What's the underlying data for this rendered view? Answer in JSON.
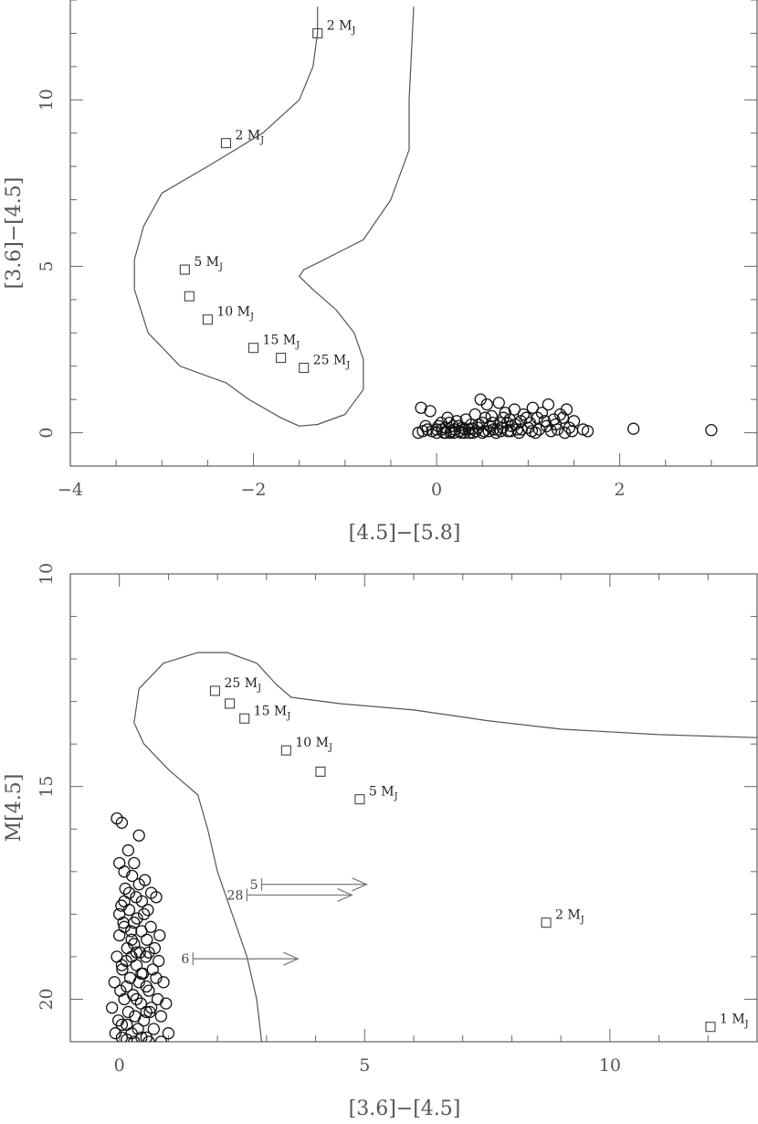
{
  "chart_data": [
    {
      "type": "scatter",
      "title": "",
      "xlabel": "[4.5]−[5.8]",
      "ylabel": "[3.6]−[4.5]",
      "xlim": [
        -4,
        3.5
      ],
      "ylim": [
        -1,
        13
      ],
      "xticks": [
        "−4",
        "−2",
        "0",
        "2"
      ],
      "xtick_values": [
        -4,
        -2,
        0,
        2
      ],
      "yticks": [
        "0",
        "5",
        "10"
      ],
      "ytick_values": [
        0,
        5,
        10
      ],
      "grid": false,
      "models": [
        {
          "label": "2",
          "unit": "M",
          "sub": "J",
          "x": -1.3,
          "y": 12.0
        },
        {
          "label": "2",
          "unit": "M",
          "sub": "J",
          "x": -2.3,
          "y": 8.7
        },
        {
          "label": "5",
          "unit": "M",
          "sub": "J",
          "x": -2.75,
          "y": 4.9
        },
        {
          "label": "",
          "unit": "",
          "sub": "",
          "x": -2.7,
          "y": 4.1
        },
        {
          "label": "10",
          "unit": "M",
          "sub": "J",
          "x": -2.5,
          "y": 3.4
        },
        {
          "label": "15",
          "unit": "M",
          "sub": "J",
          "x": -2.0,
          "y": 2.55
        },
        {
          "label": "",
          "unit": "",
          "sub": "",
          "x": -1.7,
          "y": 2.25
        },
        {
          "label": "25",
          "unit": "M",
          "sub": "J",
          "x": -1.45,
          "y": 1.95
        }
      ],
      "contour": [
        [
          -1.3,
          12.8
        ],
        [
          -1.3,
          12.0
        ],
        [
          -1.35,
          11.0
        ],
        [
          -1.5,
          10.0
        ],
        [
          -1.9,
          9.0
        ],
        [
          -2.5,
          8.0
        ],
        [
          -3.0,
          7.2
        ],
        [
          -3.2,
          6.2
        ],
        [
          -3.3,
          5.2
        ],
        [
          -3.3,
          4.3
        ],
        [
          -3.15,
          3.0
        ],
        [
          -2.8,
          2.0
        ],
        [
          -2.4,
          1.6
        ],
        [
          -2.3,
          1.5
        ],
        [
          -2.05,
          1.0
        ],
        [
          -1.7,
          0.45
        ],
        [
          -1.5,
          0.2
        ],
        [
          -1.3,
          0.25
        ],
        [
          -1.0,
          0.55
        ],
        [
          -0.8,
          1.3
        ],
        [
          -0.8,
          2.2
        ],
        [
          -0.9,
          3.0
        ],
        [
          -1.1,
          3.7
        ],
        [
          -1.35,
          4.3
        ],
        [
          -1.5,
          4.7
        ],
        [
          -1.45,
          4.9
        ],
        [
          -1.3,
          5.1
        ],
        [
          -0.8,
          5.8
        ],
        [
          -0.5,
          7.0
        ],
        [
          -0.3,
          8.5
        ],
        [
          -0.3,
          10.0
        ],
        [
          -0.25,
          12.8
        ]
      ],
      "points": [
        [
          -0.2,
          0.0
        ],
        [
          -0.17,
          0.75
        ],
        [
          -0.12,
          0.2
        ],
        [
          -0.05,
          0.05
        ],
        [
          -0.07,
          0.65
        ],
        [
          0.0,
          0.1
        ],
        [
          0.05,
          0.3
        ],
        [
          0.08,
          0.0
        ],
        [
          0.1,
          0.15
        ],
        [
          0.12,
          0.45
        ],
        [
          0.15,
          0.0
        ],
        [
          0.18,
          0.2
        ],
        [
          0.2,
          0.1
        ],
        [
          0.22,
          0.35
        ],
        [
          0.25,
          0.05
        ],
        [
          0.28,
          0.15
        ],
        [
          0.3,
          0.0
        ],
        [
          0.32,
          0.4
        ],
        [
          0.35,
          0.1
        ],
        [
          0.38,
          0.25
        ],
        [
          0.4,
          0.0
        ],
        [
          0.42,
          0.55
        ],
        [
          0.45,
          0.15
        ],
        [
          0.48,
          1.0
        ],
        [
          0.5,
          0.3
        ],
        [
          0.52,
          0.05
        ],
        [
          0.55,
          0.85
        ],
        [
          0.58,
          0.2
        ],
        [
          0.6,
          0.5
        ],
        [
          0.62,
          0.1
        ],
        [
          0.65,
          0.0
        ],
        [
          0.68,
          0.9
        ],
        [
          0.7,
          0.3
        ],
        [
          0.72,
          0.15
        ],
        [
          0.75,
          0.6
        ],
        [
          0.78,
          0.05
        ],
        [
          0.8,
          0.4
        ],
        [
          0.82,
          0.2
        ],
        [
          0.85,
          0.7
        ],
        [
          0.88,
          0.1
        ],
        [
          0.9,
          0.0
        ],
        [
          0.92,
          0.35
        ],
        [
          0.95,
          0.55
        ],
        [
          1.0,
          0.15
        ],
        [
          1.02,
          0.3
        ],
        [
          1.05,
          0.75
        ],
        [
          1.08,
          0.0
        ],
        [
          1.1,
          0.45
        ],
        [
          1.12,
          0.1
        ],
        [
          1.15,
          0.6
        ],
        [
          1.2,
          0.2
        ],
        [
          1.22,
          0.85
        ],
        [
          1.25,
          0.05
        ],
        [
          1.28,
          0.4
        ],
        [
          1.3,
          0.25
        ],
        [
          1.35,
          0.55
        ],
        [
          1.4,
          0.0
        ],
        [
          1.42,
          0.7
        ],
        [
          1.45,
          0.15
        ],
        [
          1.5,
          0.35
        ],
        [
          1.6,
          0.1
        ],
        [
          1.65,
          0.05
        ],
        [
          2.15,
          0.12
        ],
        [
          3.0,
          0.08
        ],
        [
          -0.15,
          0.05
        ],
        [
          -0.1,
          0.1
        ],
        [
          0.0,
          0.0
        ],
        [
          0.02,
          0.2
        ],
        [
          0.06,
          0.1
        ],
        [
          0.1,
          0.0
        ],
        [
          0.14,
          0.3
        ],
        [
          0.16,
          0.05
        ],
        [
          0.19,
          0.0
        ],
        [
          0.24,
          0.2
        ],
        [
          0.27,
          0.0
        ],
        [
          0.31,
          0.1
        ],
        [
          0.36,
          0.0
        ],
        [
          0.39,
          0.12
        ],
        [
          0.43,
          0.05
        ],
        [
          0.46,
          0.25
        ],
        [
          0.5,
          0.0
        ],
        [
          0.53,
          0.45
        ],
        [
          0.57,
          0.05
        ],
        [
          0.61,
          0.3
        ],
        [
          0.66,
          0.1
        ],
        [
          0.7,
          0.05
        ],
        [
          0.73,
          0.45
        ],
        [
          0.77,
          0.3
        ],
        [
          0.81,
          0.05
        ],
        [
          0.86,
          0.25
        ],
        [
          0.93,
          0.1
        ],
        [
          0.98,
          0.45
        ],
        [
          1.04,
          0.05
        ],
        [
          1.18,
          0.35
        ],
        [
          1.32,
          0.1
        ],
        [
          1.38,
          0.45
        ],
        [
          1.48,
          0.05
        ]
      ]
    },
    {
      "type": "scatter",
      "title": "",
      "xlabel": "[3.6]−[4.5]",
      "ylabel": "M[4.5]",
      "xlim": [
        -1,
        13
      ],
      "ylim": [
        21,
        10
      ],
      "xticks": [
        "0",
        "5",
        "10"
      ],
      "xtick_values": [
        0,
        5,
        10
      ],
      "yticks": [
        "10",
        "15",
        "20"
      ],
      "ytick_values": [
        10,
        15,
        20
      ],
      "grid": false,
      "models": [
        {
          "label": "25",
          "unit": "M",
          "sub": "J",
          "x": 1.95,
          "y": 12.75
        },
        {
          "label": "",
          "unit": "",
          "sub": "",
          "x": 2.25,
          "y": 13.05
        },
        {
          "label": "15",
          "unit": "M",
          "sub": "J",
          "x": 2.55,
          "y": 13.4
        },
        {
          "label": "10",
          "unit": "M",
          "sub": "J",
          "x": 3.4,
          "y": 14.15
        },
        {
          "label": "",
          "unit": "",
          "sub": "",
          "x": 4.1,
          "y": 14.65
        },
        {
          "label": "5",
          "unit": "M",
          "sub": "J",
          "x": 4.9,
          "y": 15.3
        },
        {
          "label": "2",
          "unit": "M",
          "sub": "J",
          "x": 8.7,
          "y": 18.2
        },
        {
          "label": "1",
          "unit": "M",
          "sub": "J",
          "x": 12.05,
          "y": 20.65
        }
      ],
      "limits": [
        {
          "label": "5",
          "x": 2.9,
          "y": 17.3
        },
        {
          "label": "28",
          "x": 2.6,
          "y": 17.55
        },
        {
          "label": "6",
          "x": 1.5,
          "y": 19.05
        }
      ],
      "contour": [
        [
          2.9,
          21.0
        ],
        [
          2.8,
          20.0
        ],
        [
          2.6,
          19.0
        ],
        [
          2.3,
          18.0
        ],
        [
          2.0,
          17.0
        ],
        [
          1.8,
          16.0
        ],
        [
          1.6,
          15.2
        ],
        [
          1.0,
          14.6
        ],
        [
          0.5,
          14.0
        ],
        [
          0.3,
          13.5
        ],
        [
          0.4,
          12.7
        ],
        [
          0.9,
          12.1
        ],
        [
          1.6,
          11.85
        ],
        [
          2.2,
          11.85
        ],
        [
          2.8,
          12.1
        ],
        [
          3.2,
          12.6
        ],
        [
          3.5,
          12.9
        ],
        [
          4.5,
          13.05
        ],
        [
          6.0,
          13.2
        ],
        [
          7.5,
          13.45
        ],
        [
          9.0,
          13.65
        ],
        [
          11.0,
          13.78
        ],
        [
          13.0,
          13.85
        ]
      ],
      "points": [
        [
          -0.15,
          20.2
        ],
        [
          -0.1,
          19.6
        ],
        [
          -0.08,
          20.8
        ],
        [
          -0.05,
          19.0
        ],
        [
          -0.02,
          20.5
        ],
        [
          0.0,
          18.5
        ],
        [
          0.02,
          19.8
        ],
        [
          0.04,
          17.8
        ],
        [
          0.05,
          20.9
        ],
        [
          0.06,
          19.3
        ],
        [
          0.08,
          18.2
        ],
        [
          0.1,
          20.0
        ],
        [
          0.12,
          17.4
        ],
        [
          0.14,
          19.1
        ],
        [
          0.15,
          20.6
        ],
        [
          0.16,
          18.8
        ],
        [
          0.18,
          16.5
        ],
        [
          0.18,
          20.3
        ],
        [
          0.2,
          17.9
        ],
        [
          0.22,
          19.5
        ],
        [
          0.24,
          18.4
        ],
        [
          0.25,
          20.8
        ],
        [
          0.26,
          17.1
        ],
        [
          0.28,
          19.9
        ],
        [
          0.3,
          18.7
        ],
        [
          0.3,
          16.8
        ],
        [
          0.32,
          20.4
        ],
        [
          0.34,
          17.6
        ],
        [
          0.35,
          19.2
        ],
        [
          0.36,
          18.1
        ],
        [
          0.38,
          20.7
        ],
        [
          0.4,
          19.6
        ],
        [
          0.4,
          17.3
        ],
        [
          0.42,
          18.9
        ],
        [
          0.44,
          20.1
        ],
        [
          0.45,
          18.4
        ],
        [
          0.46,
          17.7
        ],
        [
          0.48,
          19.4
        ],
        [
          0.5,
          20.5
        ],
        [
          0.5,
          18.0
        ],
        [
          0.52,
          17.2
        ],
        [
          0.54,
          19.0
        ],
        [
          0.55,
          20.9
        ],
        [
          0.56,
          18.6
        ],
        [
          0.58,
          17.9
        ],
        [
          0.6,
          19.8
        ],
        [
          0.62,
          20.3
        ],
        [
          0.64,
          18.3
        ],
        [
          0.65,
          17.5
        ],
        [
          0.68,
          19.3
        ],
        [
          0.7,
          20.7
        ],
        [
          0.72,
          18.8
        ],
        [
          0.75,
          17.6
        ],
        [
          0.78,
          20.0
        ],
        [
          0.8,
          19.1
        ],
        [
          0.82,
          18.5
        ],
        [
          0.85,
          20.4
        ],
        [
          0.9,
          19.6
        ],
        [
          0.95,
          20.1
        ],
        [
          1.0,
          20.8
        ],
        [
          -0.05,
          15.75
        ],
        [
          0.05,
          15.85
        ],
        [
          0.4,
          16.15
        ],
        [
          0.0,
          16.8
        ],
        [
          0.1,
          17.0
        ],
        [
          0.2,
          17.5
        ],
        [
          0.0,
          18.0
        ],
        [
          0.1,
          18.3
        ],
        [
          0.25,
          18.6
        ],
        [
          0.35,
          18.9
        ],
        [
          0.45,
          19.4
        ],
        [
          0.55,
          19.7
        ],
        [
          0.65,
          20.2
        ],
        [
          0.05,
          20.6
        ],
        [
          0.15,
          20.95
        ],
        [
          0.3,
          21.0
        ],
        [
          0.45,
          20.9
        ],
        [
          0.6,
          21.0
        ],
        [
          0.85,
          21.0
        ],
        [
          0.25,
          19.0
        ],
        [
          0.05,
          19.2
        ],
        [
          0.15,
          19.7
        ],
        [
          0.35,
          20.0
        ],
        [
          0.55,
          20.3
        ],
        [
          0.1,
          17.7
        ],
        [
          0.3,
          18.2
        ],
        [
          0.6,
          18.9
        ],
        [
          0.75,
          19.5
        ]
      ]
    }
  ]
}
